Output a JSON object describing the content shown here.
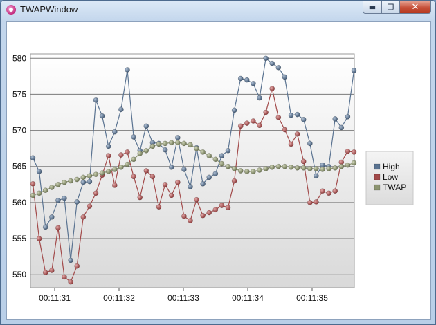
{
  "window": {
    "title": "TWAPWindow",
    "minimize_glyph": "▬",
    "maximize_glyph": "❐",
    "close_glyph": "✕",
    "icon": "app-icon"
  },
  "colors": {
    "high": "#5a7391",
    "low": "#a24a4a",
    "twap": "#8c9470"
  },
  "chart_data": {
    "type": "line",
    "title": "",
    "xlabel": "",
    "ylabel": "",
    "grid": true,
    "legend_position": "right",
    "ylim": [
      548.2,
      580.6
    ],
    "x_ticks": [
      "00:11:31",
      "00:11:32",
      "00:11:33",
      "00:11:34",
      "00:11:35"
    ],
    "y_ticks": [
      550,
      555,
      560,
      565,
      570,
      575,
      580
    ],
    "series": [
      {
        "name": "High",
        "values": [
          566.2,
          564.3,
          556.6,
          558.0,
          560.3,
          560.6,
          552.0,
          560.1,
          562.8,
          562.9,
          574.2,
          572.0,
          567.8,
          569.8,
          572.9,
          578.4,
          569.1,
          567.2,
          570.6,
          568.3,
          568.2,
          567.3,
          564.9,
          569.0,
          564.6,
          562.2,
          567.6,
          562.6,
          563.5,
          564.0,
          566.5,
          567.2,
          572.8,
          577.2,
          577.0,
          576.5,
          574.5,
          580.0,
          579.3,
          578.7,
          577.4,
          572.1,
          572.2,
          571.5,
          568.2,
          563.7,
          565.2,
          565.0,
          571.6,
          570.4,
          571.9,
          578.3
        ]
      },
      {
        "name": "Low",
        "values": [
          562.6,
          555.0,
          550.3,
          550.6,
          556.5,
          549.7,
          549.0,
          551.2,
          558.0,
          559.5,
          561.3,
          563.8,
          566.5,
          562.4,
          566.6,
          567.0,
          563.6,
          560.7,
          564.4,
          563.6,
          559.4,
          562.5,
          561.0,
          562.8,
          558.1,
          557.5,
          560.4,
          558.2,
          558.6,
          559.0,
          559.6,
          559.3,
          563.0,
          570.6,
          571.0,
          571.3,
          570.7,
          572.5,
          575.8,
          571.8,
          570.1,
          568.1,
          569.5,
          565.7,
          560.0,
          560.1,
          561.6,
          561.3,
          561.6,
          565.6,
          567.1,
          567.0
        ]
      },
      {
        "name": "TWAP",
        "values": [
          561.0,
          561.3,
          561.7,
          562.1,
          562.5,
          562.8,
          563.0,
          563.2,
          563.5,
          563.7,
          563.9,
          564.1,
          564.3,
          564.6,
          564.9,
          565.3,
          566.0,
          566.8,
          567.2,
          567.8,
          568.1,
          568.2,
          568.3,
          568.3,
          568.2,
          568.0,
          567.5,
          567.0,
          566.5,
          566.0,
          565.4,
          565.0,
          564.7,
          564.4,
          564.3,
          564.3,
          564.5,
          564.7,
          564.9,
          565.0,
          565.0,
          564.9,
          564.8,
          564.8,
          564.7,
          564.7,
          564.6,
          564.7,
          564.8,
          565.0,
          565.2,
          565.5
        ]
      }
    ]
  }
}
